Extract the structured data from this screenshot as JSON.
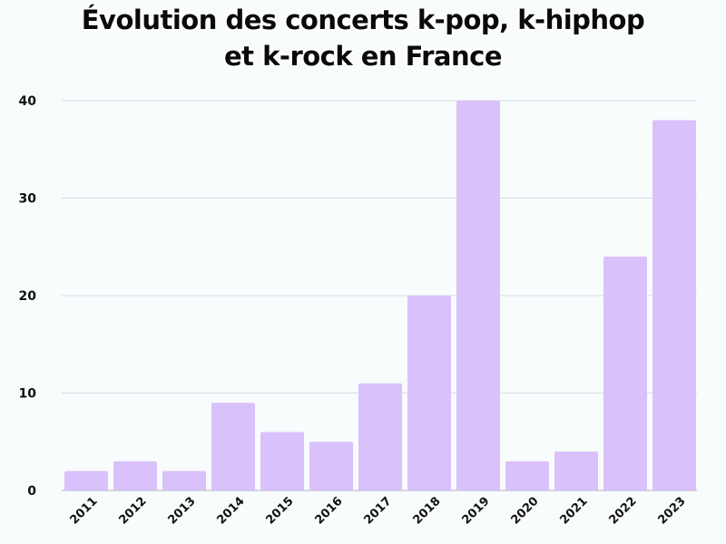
{
  "title_line1": "Évolution des concerts k-pop, k-hiphop",
  "title_line2": "et k-rock en France",
  "colors": {
    "bar": "#d9c1fb",
    "grid": "#d6dde3",
    "background": "#f8fcfc"
  },
  "chart_data": {
    "type": "bar",
    "title": "Évolution des concerts k-pop, k-hiphop et k-rock en France",
    "xlabel": "",
    "ylabel": "",
    "categories": [
      "2011",
      "2012",
      "2013",
      "2014",
      "2015",
      "2016",
      "2017",
      "2018",
      "2019",
      "2020",
      "2021",
      "2022",
      "2023"
    ],
    "values": [
      2,
      3,
      2,
      9,
      6,
      5,
      11,
      20,
      40,
      3,
      4,
      24,
      38
    ],
    "ylim": [
      0,
      40
    ],
    "yticks": [
      "0",
      "10",
      "20",
      "30",
      "40"
    ],
    "grid": true,
    "legend": "none"
  }
}
